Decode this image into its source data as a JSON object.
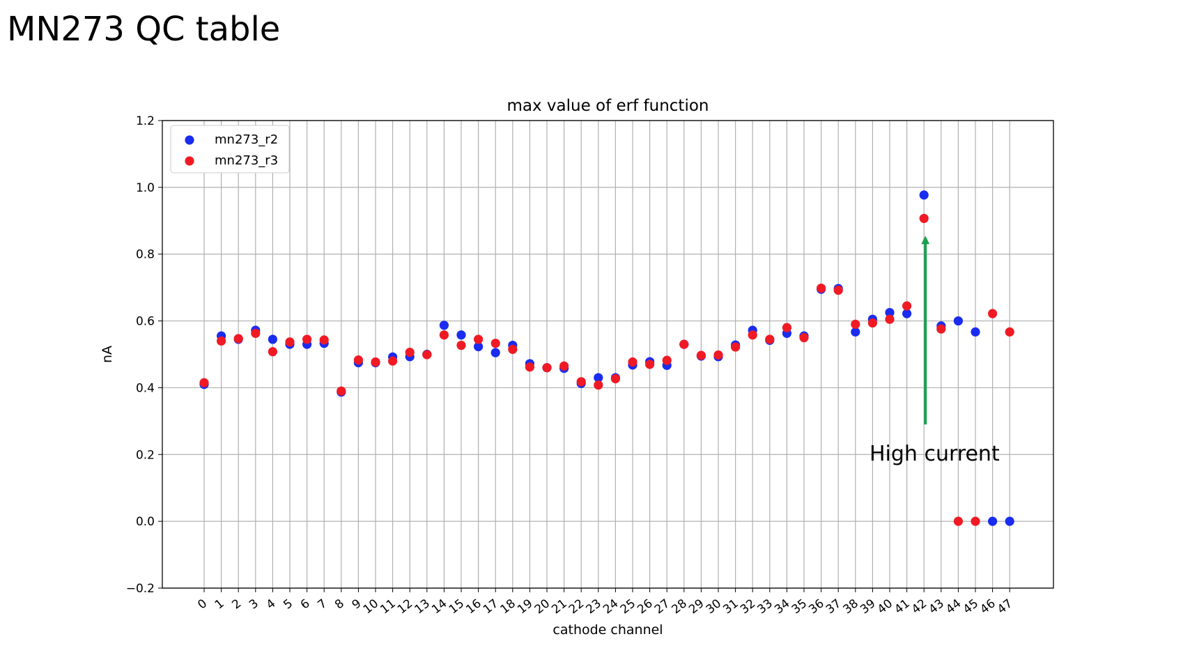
{
  "slide": {
    "title": "MN273 QC table"
  },
  "colors": {
    "r2": "#1a2cf0",
    "r3": "#f01a24",
    "arrow": "#1aa050",
    "grid": "#b0b0b0"
  },
  "chart_data": {
    "type": "scatter",
    "title": "max value of erf function",
    "xlabel": "cathode channel",
    "ylabel": "nA",
    "ylim": [
      -0.2,
      1.2
    ],
    "yticks": [
      "−0.2",
      "0.0",
      "0.2",
      "0.4",
      "0.6",
      "0.8",
      "1.0",
      "1.2"
    ],
    "ytick_values": [
      -0.2,
      0.0,
      0.2,
      0.4,
      0.6,
      0.8,
      1.0,
      1.2
    ],
    "x": [
      0,
      1,
      2,
      3,
      4,
      5,
      6,
      7,
      8,
      9,
      10,
      11,
      12,
      13,
      14,
      15,
      16,
      17,
      18,
      19,
      20,
      21,
      22,
      23,
      24,
      25,
      26,
      27,
      28,
      29,
      30,
      31,
      32,
      33,
      34,
      35,
      36,
      37,
      38,
      39,
      40,
      41,
      42,
      43,
      44,
      45,
      46,
      47
    ],
    "xtick_labels": [
      "0",
      "1",
      "2",
      "3",
      "4",
      "5",
      "6",
      "7",
      "8",
      "9",
      "10",
      "11",
      "12",
      "13",
      "14",
      "15",
      "16",
      "17",
      "18",
      "19",
      "20",
      "21",
      "22",
      "23",
      "24",
      "25",
      "26",
      "27",
      "28",
      "29",
      "30",
      "31",
      "32",
      "33",
      "34",
      "35",
      "36",
      "37",
      "38",
      "39",
      "40",
      "41",
      "42",
      "43",
      "44",
      "45",
      "46",
      "47"
    ],
    "grid": true,
    "legend_position": "top-left",
    "series": [
      {
        "name": "mn273_r2",
        "color": "#1a2cf0",
        "values": [
          0.41,
          0.555,
          0.545,
          0.572,
          0.545,
          0.53,
          0.53,
          0.533,
          0.387,
          0.475,
          0.475,
          0.492,
          0.493,
          0.5,
          0.587,
          0.558,
          0.523,
          0.505,
          0.527,
          0.472,
          0.46,
          0.458,
          0.413,
          0.43,
          0.43,
          0.468,
          0.478,
          0.467,
          0.53,
          0.495,
          0.493,
          0.528,
          0.572,
          0.542,
          0.563,
          0.555,
          0.695,
          0.697,
          0.567,
          0.605,
          0.625,
          0.622,
          0.977,
          0.585,
          0.6,
          0.567,
          0.0,
          0.0
        ]
      },
      {
        "name": "mn273_r3",
        "color": "#f01a24",
        "values": [
          0.415,
          0.54,
          0.547,
          0.563,
          0.508,
          0.537,
          0.545,
          0.543,
          0.39,
          0.483,
          0.477,
          0.48,
          0.506,
          0.499,
          0.558,
          0.527,
          0.545,
          0.533,
          0.515,
          0.462,
          0.46,
          0.465,
          0.418,
          0.408,
          0.427,
          0.477,
          0.47,
          0.482,
          0.53,
          0.497,
          0.498,
          0.522,
          0.558,
          0.545,
          0.58,
          0.55,
          0.698,
          0.692,
          0.59,
          0.594,
          0.605,
          0.645,
          0.907,
          0.576,
          0.0,
          0.0,
          0.622,
          0.567
        ]
      }
    ],
    "annotation": {
      "text": "High current",
      "arrow_channel": 42,
      "arrow_y_from": 0.29,
      "arrow_y_to": 0.855
    }
  }
}
